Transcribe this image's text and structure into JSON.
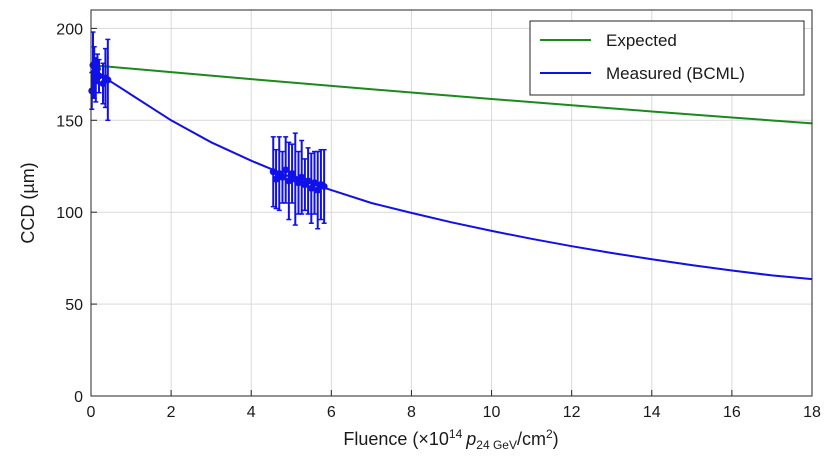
{
  "chart_data": {
    "type": "line",
    "xlabel": {
      "prefix": "Fluence (×10",
      "exp": "14",
      "p": "p",
      "sub": "24 GeV",
      "unit": "/cm",
      "unit_exp": "2",
      "suffix": ")"
    },
    "ylabel": "CCD (µm)",
    "xlim": [
      0,
      18
    ],
    "ylim": [
      0,
      210
    ],
    "x_ticks": [
      "0",
      "2",
      "4",
      "6",
      "8",
      "10",
      "12",
      "14",
      "16",
      "18"
    ],
    "y_ticks": [
      "0",
      "50",
      "100",
      "150",
      "200"
    ],
    "grid": true,
    "legend_position": "top-right",
    "series": [
      {
        "name": "Expected",
        "color": "#1a8a1a",
        "x": [
          0,
          2,
          4,
          6,
          8,
          10,
          12,
          14,
          16,
          18
        ],
        "y": [
          180,
          176.2,
          172.4,
          168.7,
          165.1,
          161.6,
          158.2,
          154.8,
          151.5,
          148.3
        ]
      },
      {
        "name": "Measured (BCML)",
        "color": "#1010e8",
        "x": [
          0,
          0.5,
          1,
          2,
          3,
          4,
          5,
          6,
          7,
          8,
          9,
          10,
          11,
          12,
          13,
          14,
          15,
          16,
          17,
          18
        ],
        "y": [
          179,
          171,
          164,
          150,
          138,
          128,
          119,
          112,
          105,
          99.6,
          94.5,
          89.8,
          85.5,
          81.5,
          77.8,
          74.4,
          71.2,
          68.3,
          65.6,
          63.6
        ],
        "measurements": [
          {
            "x": 0.02,
            "y": 166,
            "err": 10
          },
          {
            "x": 0.05,
            "y": 180,
            "err": 18
          },
          {
            "x": 0.08,
            "y": 176,
            "err": 14
          },
          {
            "x": 0.12,
            "y": 172,
            "err": 12
          },
          {
            "x": 0.16,
            "y": 178,
            "err": 8
          },
          {
            "x": 0.2,
            "y": 174,
            "err": 9
          },
          {
            "x": 0.3,
            "y": 170,
            "err": 11
          },
          {
            "x": 0.36,
            "y": 173,
            "err": 16
          },
          {
            "x": 0.42,
            "y": 172,
            "err": 22
          },
          {
            "x": 4.55,
            "y": 122,
            "err": 19
          },
          {
            "x": 4.62,
            "y": 118,
            "err": 16
          },
          {
            "x": 4.7,
            "y": 121,
            "err": 20
          },
          {
            "x": 4.78,
            "y": 119,
            "err": 14
          },
          {
            "x": 4.86,
            "y": 123,
            "err": 18
          },
          {
            "x": 4.94,
            "y": 117,
            "err": 21
          },
          {
            "x": 5.02,
            "y": 121,
            "err": 16
          },
          {
            "x": 5.1,
            "y": 118,
            "err": 25
          },
          {
            "x": 5.18,
            "y": 116,
            "err": 17
          },
          {
            "x": 5.26,
            "y": 119,
            "err": 20
          },
          {
            "x": 5.34,
            "y": 115,
            "err": 14
          },
          {
            "x": 5.42,
            "y": 117,
            "err": 18
          },
          {
            "x": 5.5,
            "y": 113,
            "err": 19
          },
          {
            "x": 5.58,
            "y": 116,
            "err": 17
          },
          {
            "x": 5.66,
            "y": 112,
            "err": 21
          },
          {
            "x": 5.74,
            "y": 115,
            "err": 19
          },
          {
            "x": 5.82,
            "y": 114,
            "err": 20
          }
        ]
      }
    ]
  }
}
